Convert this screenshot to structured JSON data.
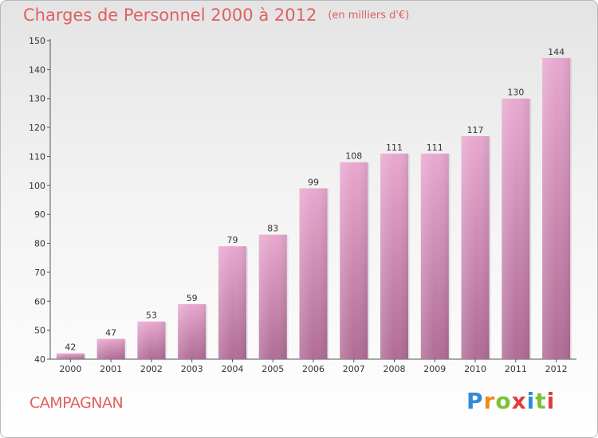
{
  "chart_data": {
    "type": "bar",
    "title": "Charges de Personnel 2000 à 2012",
    "subtitle": "(en milliers d'€)",
    "categories": [
      "2000",
      "2001",
      "2002",
      "2003",
      "2004",
      "2005",
      "2006",
      "2007",
      "2008",
      "2009",
      "2010",
      "2011",
      "2012"
    ],
    "values": [
      42,
      47,
      53,
      59,
      79,
      83,
      99,
      108,
      111,
      111,
      117,
      130,
      144
    ],
    "ylim": [
      40,
      150
    ],
    "yticks": [
      40,
      50,
      60,
      70,
      80,
      90,
      100,
      110,
      120,
      130,
      140,
      150
    ],
    "xlabel": "",
    "ylabel": "",
    "bar_color": "#d890b8",
    "grid": false,
    "legend": false
  },
  "footer": {
    "place": "CAMPAGNAN",
    "logo": "Proxiti"
  },
  "colors": {
    "title": "#e06060",
    "bar_top": "#e8a8cf",
    "bar_bottom": "#b06c95"
  }
}
